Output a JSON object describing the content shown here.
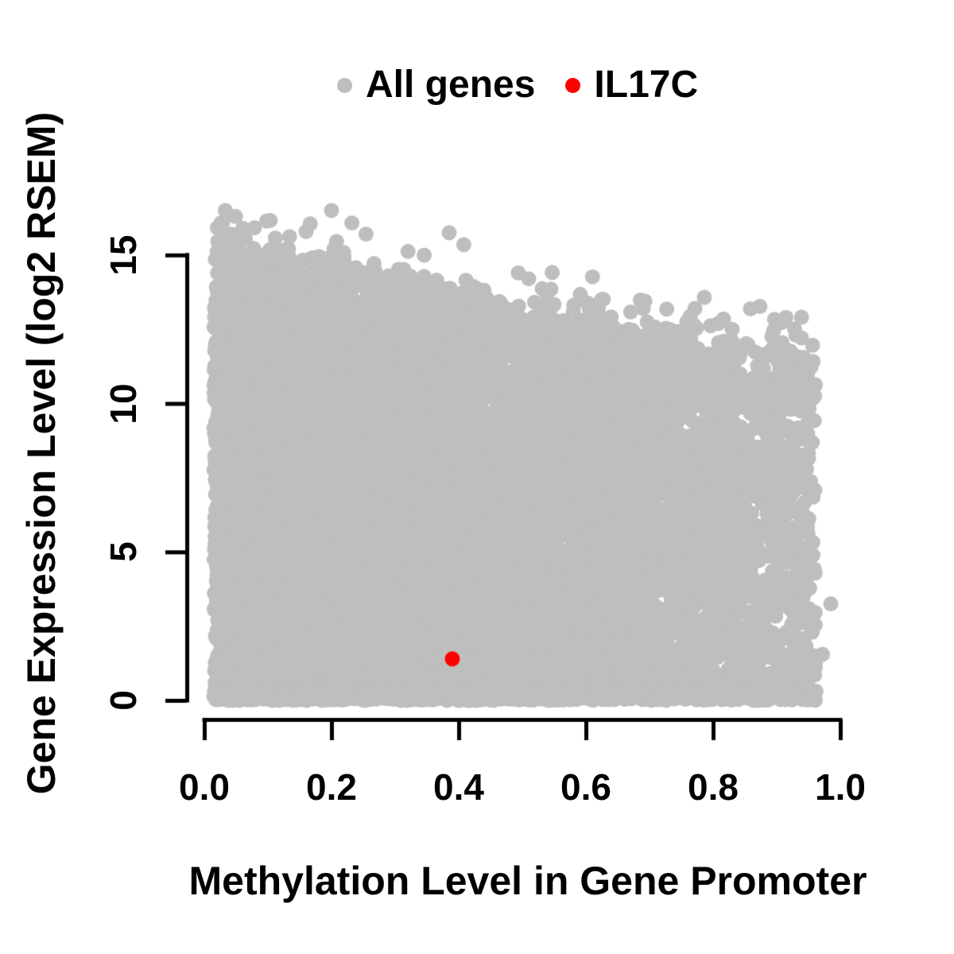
{
  "figure": {
    "background": "#ffffff",
    "legend": {
      "position": "top-center",
      "items": [
        {
          "label": "All genes",
          "color": "#bebebe"
        },
        {
          "label": "IL17C",
          "color": "#ff0000"
        }
      ]
    }
  },
  "chart_data": {
    "type": "scatter",
    "title": "",
    "xlabel": "Methylation Level in Gene Promoter",
    "ylabel": "Gene Expression Level (log2 RSEM)",
    "xlim": [
      -0.04,
      1.04
    ],
    "ylim": [
      -0.6,
      16.8
    ],
    "x_ticks": {
      "values": [
        0,
        0.2,
        0.4,
        0.6,
        0.8,
        1.0
      ],
      "labels": [
        "0.0",
        "0.2",
        "0.4",
        "0.6",
        "0.8",
        "1.0"
      ]
    },
    "y_ticks": {
      "values": [
        0,
        5,
        10,
        15
      ],
      "labels": [
        "0",
        "5",
        "10",
        "15"
      ]
    },
    "grid": false,
    "legend_position": "top-center",
    "axis_color": "#000000",
    "series": [
      {
        "name": "All genes",
        "color": "#bebebe",
        "marker": "filled-circle",
        "description": "Very dense cloud of ~11000+ genes. Methylation x spans 0.015-0.96; expression y spans 0 up to an upper envelope that declines from ~15.4 at x=0 to ~11.7 at x=0.95, with sparse outliers up to 16.7. Left side denser than right; solid strip along y=0 across full x range.",
        "generator": {
          "seed": 20240601,
          "n_cloud": 11000,
          "n_bottom_strip": 700,
          "n_stragglers": 42,
          "x_min": 0.015,
          "x_max": 0.9625,
          "left_weight": 0.62,
          "envelope": {
            "a": 15.4,
            "b": -5.2,
            "c": 1.4,
            "jitter_sd": 0.45
          },
          "y_power": 1.08,
          "bottom_strip_max_y": 0.35,
          "straggler_extra_y": [
            0.35,
            1.55
          ],
          "y_clamp_max": 16.7
        },
        "feature_points": [
          [
            0.033,
            16.5
          ],
          [
            0.049,
            16.3
          ],
          [
            0.2,
            16.5
          ],
          [
            0.232,
            16.08
          ],
          [
            0.385,
            15.75
          ],
          [
            0.408,
            15.35
          ],
          [
            0.51,
            14.2
          ],
          [
            0.545,
            13.85
          ],
          [
            0.625,
            13.5
          ],
          [
            0.69,
            13.2
          ],
          [
            0.76,
            12.7
          ],
          [
            0.83,
            12.5
          ],
          [
            0.895,
            12.45
          ],
          [
            0.93,
            12.3
          ],
          [
            0.985,
            3.25
          ],
          [
            0.972,
            1.55
          ]
        ]
      },
      {
        "name": "IL17C",
        "color": "#ff0000",
        "marker": "filled-circle",
        "points": [
          [
            0.39,
            1.4
          ]
        ]
      }
    ]
  }
}
